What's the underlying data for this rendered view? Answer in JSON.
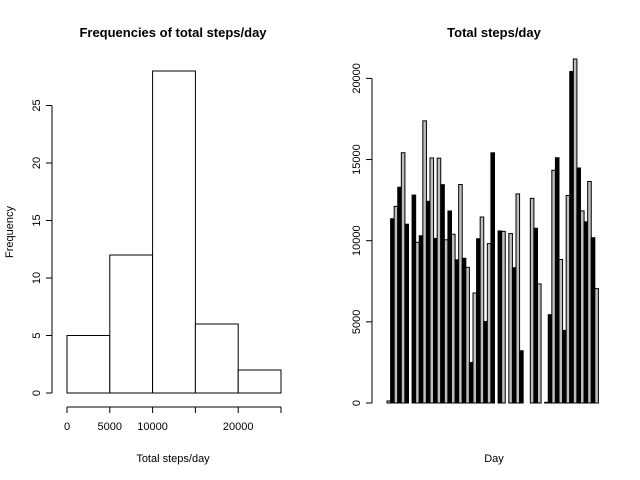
{
  "chart_data": [
    {
      "type": "bar",
      "title": "Frequencies of total steps/day",
      "xlabel": "Total steps/day",
      "ylabel": "Frequency",
      "bin_edges": [
        0,
        5000,
        10000,
        15000,
        20000,
        25000
      ],
      "values": [
        5,
        12,
        28,
        6,
        2
      ],
      "x_ticks": [
        0,
        5000,
        10000,
        20000
      ],
      "x_axis_range": [
        0,
        25000
      ],
      "y_ticks": [
        0,
        5,
        10,
        15,
        20,
        25
      ],
      "ylim": [
        0,
        28
      ],
      "bar_fill": "#ffffff",
      "bar_stroke": "#000000",
      "grid": false
    },
    {
      "type": "bar",
      "title": "Total steps/day",
      "xlabel": "Day",
      "ylabel": "",
      "values": [
        126,
        11352,
        12116,
        13294,
        15420,
        11015,
        0,
        12811,
        9900,
        10304,
        17382,
        12426,
        15098,
        10139,
        15084,
        13452,
        10056,
        11829,
        10395,
        8821,
        13460,
        8918,
        8355,
        2492,
        6778,
        10119,
        11458,
        5018,
        9819,
        15414,
        0,
        10600,
        10571,
        0,
        10439,
        8334,
        12883,
        3219,
        0,
        0,
        12608,
        10765,
        7336,
        0,
        41,
        5441,
        14339,
        15110,
        8841,
        4472,
        12787,
        20427,
        21194,
        14478,
        11834,
        11162,
        13646,
        10183,
        7047,
        0
      ],
      "bar_colors": [
        "#bebebe",
        "#000000"
      ],
      "y_ticks": [
        0,
        5000,
        10000,
        15000,
        20000
      ],
      "ylim": [
        0,
        21194
      ],
      "grid": false
    }
  ]
}
